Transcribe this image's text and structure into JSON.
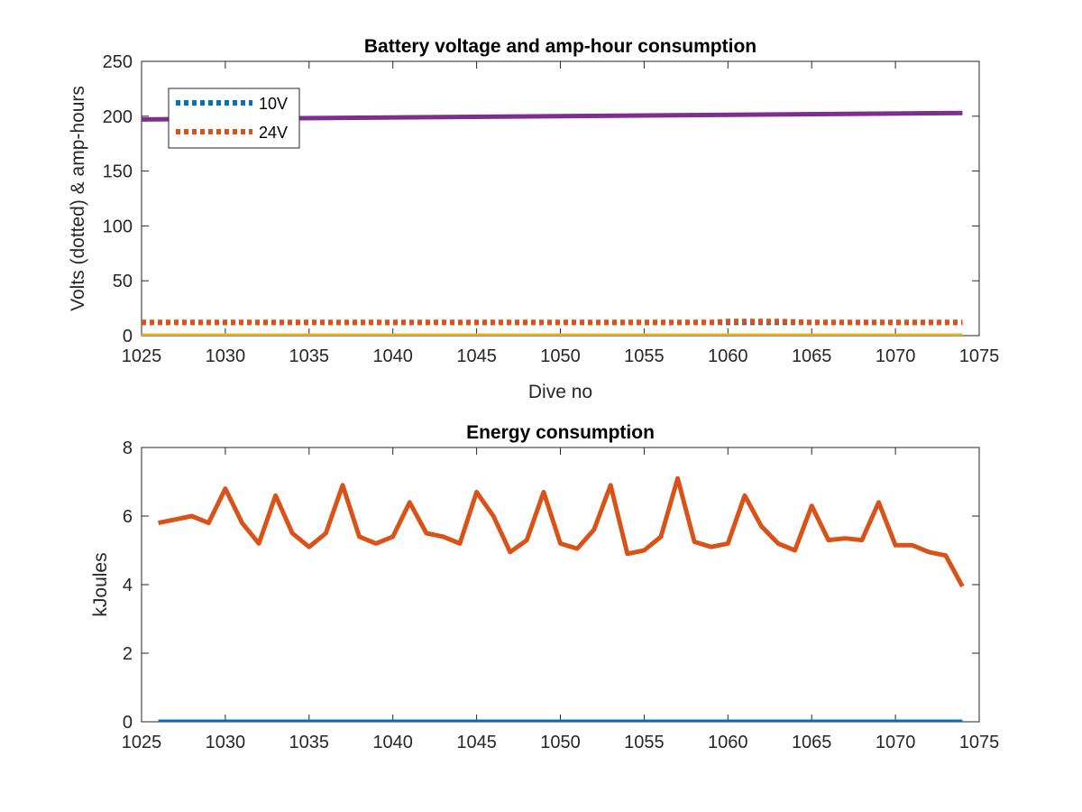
{
  "chart_data": [
    {
      "type": "line",
      "title": "Battery voltage and amp-hour consumption",
      "xlabel": "Dive no",
      "ylabel": "Volts (dotted) & amp-hours",
      "xlim": [
        1025,
        1075
      ],
      "ylim": [
        0,
        250
      ],
      "xticks": [
        "1025",
        "1030",
        "1035",
        "1040",
        "1045",
        "1050",
        "1055",
        "1060",
        "1065",
        "1070",
        "1075"
      ],
      "yticks": [
        "0",
        "50",
        "100",
        "150",
        "200",
        "250"
      ],
      "legend": {
        "placement": "top-left",
        "entries": [
          "10V",
          "24V"
        ]
      },
      "series": [
        {
          "name": "10V",
          "style": "dotted",
          "color": "#0072BD",
          "x": [
            1025,
            1074
          ],
          "y": [
            12,
            12
          ]
        },
        {
          "name": "24V",
          "style": "dotted",
          "color": "#D95319",
          "x": [
            1025,
            1059,
            1060,
            1063,
            1065,
            1074
          ],
          "y": [
            12,
            12,
            13,
            13,
            12,
            12
          ]
        },
        {
          "style": "solid",
          "color": "#EDB120",
          "x": [
            1025,
            1074
          ],
          "y": [
            0,
            0
          ]
        },
        {
          "style": "solid",
          "color": "#7E2F8E",
          "x": [
            1025,
            1074
          ],
          "y": [
            197,
            203
          ]
        }
      ]
    },
    {
      "type": "line",
      "title": "Energy consumption",
      "xlabel": "",
      "ylabel": "kJoules",
      "xlim": [
        1025,
        1075
      ],
      "ylim": [
        0,
        8
      ],
      "xticks": [
        "1025",
        "1030",
        "1035",
        "1040",
        "1045",
        "1050",
        "1055",
        "1060",
        "1065",
        "1070",
        "1075"
      ],
      "yticks": [
        "0",
        "2",
        "4",
        "6",
        "8"
      ],
      "series": [
        {
          "style": "solid",
          "color": "#D95319",
          "x": [
            1026,
            1027,
            1028,
            1029,
            1030,
            1031,
            1032,
            1033,
            1034,
            1035,
            1036,
            1037,
            1038,
            1039,
            1040,
            1041,
            1042,
            1043,
            1044,
            1045,
            1046,
            1047,
            1048,
            1049,
            1050,
            1051,
            1052,
            1053,
            1054,
            1055,
            1056,
            1057,
            1058,
            1059,
            1060,
            1061,
            1062,
            1063,
            1064,
            1065,
            1066,
            1067,
            1068,
            1069,
            1070,
            1071,
            1072,
            1073,
            1074
          ],
          "y": [
            5.8,
            5.9,
            6.0,
            5.8,
            6.8,
            5.8,
            5.2,
            6.6,
            5.5,
            5.1,
            5.5,
            6.9,
            5.4,
            5.2,
            5.4,
            6.4,
            5.5,
            5.4,
            5.2,
            6.7,
            6.0,
            4.95,
            5.3,
            6.7,
            5.2,
            5.05,
            5.6,
            6.9,
            4.9,
            5.0,
            5.4,
            7.1,
            5.25,
            5.1,
            5.2,
            6.6,
            5.7,
            5.2,
            5.0,
            6.3,
            5.3,
            5.35,
            5.3,
            6.4,
            5.15,
            5.15,
            4.95,
            4.85,
            3.95
          ]
        },
        {
          "style": "solid",
          "color": "#0072BD",
          "x": [
            1026,
            1074
          ],
          "y": [
            0,
            0
          ]
        }
      ]
    }
  ]
}
